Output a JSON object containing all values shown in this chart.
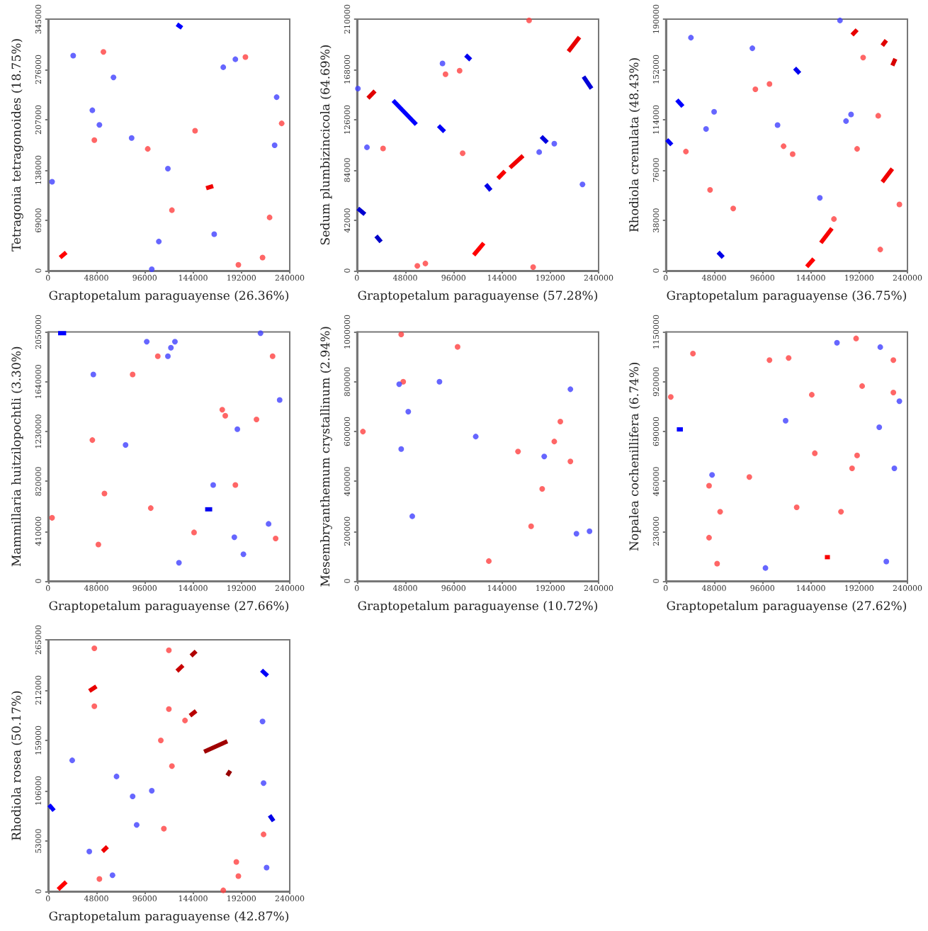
{
  "chart_data": [
    {
      "type": "line",
      "xlabel": "Graptopetalum paraguayense (26.36%)",
      "ylabel": "Tetragonia tetragonoides (18.75%)",
      "xlim": [
        0,
        240000
      ],
      "xticks": [
        0,
        48000,
        96000,
        144000,
        192000,
        240000
      ],
      "ylim": [
        0,
        345000
      ],
      "yticks": [
        0,
        69000,
        138000,
        207000,
        276000,
        345000
      ],
      "marker": "none",
      "series": [
        {
          "color": "#ff0000",
          "x": [
            12000,
            18000
          ],
          "values": [
            18000,
            25000
          ]
        },
        {
          "color": "#f00000",
          "x": [
            157000,
            164000
          ],
          "values": [
            113000,
            116000
          ]
        },
        {
          "color": "#0000ff",
          "x": [
            128000,
            133000
          ],
          "values": [
            338000,
            333000
          ]
        },
        {
          "type": "scatter",
          "marker": "circle",
          "color": "#ff4040",
          "x": [
            196000,
            189000,
            46000,
            99000,
            123000,
            232000,
            55000,
            146000,
            220000,
            213000
          ],
          "values": [
            293000,
            8000,
            179000,
            167000,
            83000,
            202000,
            300000,
            192000,
            73000,
            18000
          ]
        },
        {
          "type": "scatter",
          "marker": "circle",
          "color": "#4040ff",
          "x": [
            51000,
            119000,
            174000,
            25000,
            165000,
            110000,
            103000,
            225000,
            186000,
            65000,
            227000,
            44000,
            83000,
            4000
          ],
          "values": [
            200000,
            140000,
            279000,
            295000,
            50000,
            40000,
            2000,
            172000,
            290000,
            265000,
            238000,
            220000,
            182000,
            122000
          ]
        }
      ]
    },
    {
      "type": "line",
      "xlabel": "Graptopetalum paraguayense (57.28%)",
      "ylabel": "Sedum plumbizincicola (64.69%)",
      "xlim": [
        0,
        240000
      ],
      "xticks": [
        0,
        48000,
        96000,
        144000,
        192000,
        240000
      ],
      "ylim": [
        0,
        210000
      ],
      "yticks": [
        0,
        42000,
        84000,
        126000,
        168000,
        210000
      ],
      "marker": "none",
      "series": [
        {
          "color": "#ff0000",
          "x": [
            116000,
            126000
          ],
          "values": [
            13000,
            23000
          ]
        },
        {
          "color": "#f80000",
          "x": [
            140000,
            147000
          ],
          "values": [
            77000,
            83000
          ]
        },
        {
          "color": "#f00000",
          "x": [
            152000,
            165000
          ],
          "values": [
            86000,
            96000
          ]
        },
        {
          "color": "#e80000",
          "x": [
            210000,
            221000
          ],
          "values": [
            183000,
            195000
          ]
        },
        {
          "color": "#e00000",
          "x": [
            11000,
            18000
          ],
          "values": [
            144000,
            150000
          ]
        },
        {
          "color": "#0000ff",
          "x": [
            36000,
            59000
          ],
          "values": [
            142000,
            122000
          ]
        },
        {
          "color": "#0000f8",
          "x": [
            81000,
            87000
          ],
          "values": [
            121000,
            116000
          ]
        },
        {
          "color": "#0000f0",
          "x": [
            108000,
            113000
          ],
          "values": [
            180000,
            176000
          ]
        },
        {
          "color": "#0000e8",
          "x": [
            128000,
            133000
          ],
          "values": [
            72000,
            67000
          ]
        },
        {
          "color": "#0000e0",
          "x": [
            183000,
            189000
          ],
          "values": [
            112000,
            107000
          ]
        },
        {
          "color": "#0000d8",
          "x": [
            225000,
            233000
          ],
          "values": [
            162000,
            152000
          ]
        },
        {
          "color": "#0000d0",
          "x": [
            1000,
            8000
          ],
          "values": [
            52000,
            47000
          ]
        },
        {
          "color": "#0000c8",
          "x": [
            19000,
            24000
          ],
          "values": [
            29000,
            24000
          ]
        },
        {
          "type": "scatter",
          "marker": "circle",
          "color": "#ff4040",
          "x": [
            68000,
            102000,
            171000,
            60000,
            88000,
            105000,
            26000,
            175000
          ],
          "values": [
            6000,
            167000,
            209000,
            4000,
            164000,
            98000,
            102000,
            3000
          ]
        },
        {
          "type": "scatter",
          "marker": "circle",
          "color": "#4040ff",
          "x": [
            85000,
            181000,
            196000,
            10000,
            1000,
            224000
          ],
          "values": [
            173000,
            99000,
            106000,
            103000,
            152000,
            72000
          ]
        }
      ]
    },
    {
      "type": "line",
      "xlabel": "Graptopetalum paraguayense (36.75%)",
      "ylabel": "Rhodiola crenulata (48.43%)",
      "xlim": [
        0,
        240000
      ],
      "xticks": [
        0,
        48000,
        96000,
        144000,
        192000,
        240000
      ],
      "ylim": [
        0,
        190000
      ],
      "yticks": [
        0,
        38000,
        76000,
        114000,
        152000,
        190000
      ],
      "marker": "none",
      "series": [
        {
          "color": "#ff0000",
          "x": [
            140000,
            147000
          ],
          "values": [
            3000,
            9000
          ]
        },
        {
          "color": "#f80000",
          "x": [
            154000,
            165000
          ],
          "values": [
            21000,
            32000
          ]
        },
        {
          "color": "#f00000",
          "x": [
            215000,
            225000
          ],
          "values": [
            67000,
            77000
          ]
        },
        {
          "color": "#e80000",
          "x": [
            185000,
            190000
          ],
          "values": [
            178000,
            182000
          ]
        },
        {
          "color": "#e00000",
          "x": [
            215000,
            219000
          ],
          "values": [
            170000,
            174000
          ]
        },
        {
          "color": "#d80000",
          "x": [
            225000,
            228000
          ],
          "values": [
            155000,
            160000
          ]
        },
        {
          "color": "#0000ff",
          "x": [
            11000,
            17000
          ],
          "values": [
            129000,
            124000
          ]
        },
        {
          "color": "#0000f8",
          "x": [
            1000,
            6000
          ],
          "values": [
            99000,
            95000
          ]
        },
        {
          "color": "#0000f0",
          "x": [
            128000,
            133000
          ],
          "values": [
            153000,
            149000
          ]
        },
        {
          "color": "#0000e8",
          "x": [
            52000,
            57000
          ],
          "values": [
            14000,
            10000
          ]
        },
        {
          "type": "scatter",
          "marker": "circle",
          "color": "#ff4040",
          "x": [
            167000,
            67000,
            103000,
            196000,
            117000,
            126000,
            20000,
            190000,
            211000,
            232000,
            44000,
            213000,
            89000
          ],
          "values": [
            39000,
            47000,
            141000,
            161000,
            94000,
            88000,
            90000,
            92000,
            117000,
            50000,
            61000,
            16000,
            137000
          ]
        },
        {
          "type": "scatter",
          "marker": "circle",
          "color": "#4040ff",
          "x": [
            48000,
            25000,
            184000,
            179000,
            173000,
            86000,
            153000,
            40000,
            111000
          ],
          "values": [
            120000,
            176000,
            118000,
            113000,
            189000,
            168000,
            55000,
            107000,
            110000
          ]
        }
      ]
    },
    {
      "type": "line",
      "xlabel": "Graptopetalum paraguayense (27.66%)",
      "ylabel": "Mammillaria huitzilopochtli (3.30%)",
      "xlim": [
        0,
        240000
      ],
      "xticks": [
        0,
        48000,
        96000,
        144000,
        192000,
        240000
      ],
      "ylim": [
        0,
        2050000
      ],
      "yticks": [
        0,
        410000,
        820000,
        1230000,
        1640000,
        2050000
      ],
      "marker": "none",
      "series": [
        {
          "color": "#0000ff",
          "x": [
            10000,
            18000
          ],
          "values": [
            2040000,
            2040000
          ]
        },
        {
          "color": "#0000f0",
          "x": [
            156000,
            163000
          ],
          "values": [
            590000,
            590000
          ]
        },
        {
          "type": "scatter",
          "marker": "circle",
          "color": "#ff4040",
          "x": [
            4000,
            44000,
            56000,
            102000,
            109000,
            173000,
            176000,
            207000,
            50000,
            223000,
            186000,
            84000,
            145000,
            226000
          ],
          "values": [
            520000,
            1160000,
            720000,
            600000,
            1850000,
            1410000,
            1360000,
            1330000,
            300000,
            1850000,
            790000,
            1700000,
            400000,
            350000
          ]
        },
        {
          "type": "scatter",
          "marker": "circle",
          "color": "#4040ff",
          "x": [
            211000,
            45000,
            98000,
            119000,
            122000,
            126000,
            77000,
            164000,
            185000,
            188000,
            219000,
            230000,
            194000,
            130000
          ],
          "values": [
            2040000,
            1700000,
            1970000,
            1850000,
            1920000,
            1970000,
            1120000,
            790000,
            360000,
            1250000,
            470000,
            1490000,
            220000,
            150000
          ]
        }
      ]
    },
    {
      "type": "line",
      "xlabel": "Graptopetalum paraguayense (10.72%)",
      "ylabel": "Mesembryanthemum crystallinum (2.94%)",
      "xlim": [
        0,
        240000
      ],
      "xticks": [
        0,
        48000,
        96000,
        144000,
        192000,
        240000
      ],
      "ylim": [
        0,
        1000000
      ],
      "yticks": [
        0,
        200000,
        400000,
        600000,
        800000,
        1000000
      ],
      "series": [
        {
          "type": "scatter",
          "marker": "circle",
          "color": "#ff4040",
          "x": [
            44000,
            6000,
            46000,
            160000,
            184000,
            202000,
            196000,
            212000,
            173000,
            100000,
            131000
          ],
          "values": [
            990000,
            600000,
            800000,
            520000,
            370000,
            640000,
            560000,
            480000,
            220000,
            940000,
            80000
          ]
        },
        {
          "type": "scatter",
          "marker": "circle",
          "color": "#4040ff",
          "x": [
            42000,
            82000,
            44000,
            55000,
            118000,
            212000,
            218000,
            231000,
            51000,
            186000
          ],
          "values": [
            790000,
            800000,
            530000,
            260000,
            580000,
            770000,
            190000,
            200000,
            680000,
            500000
          ]
        }
      ]
    },
    {
      "type": "line",
      "xlabel": "Graptopetalum paraguayense (27.62%)",
      "ylabel": "Nopalea cochenillifera (6.74%)",
      "xlim": [
        0,
        240000
      ],
      "xticks": [
        0,
        48000,
        96000,
        144000,
        192000,
        240000
      ],
      "ylim": [
        0,
        1150000
      ],
      "yticks": [
        0,
        230000,
        460000,
        690000,
        920000,
        1150000
      ],
      "marker": "none",
      "series": [
        {
          "color": "#f80000",
          "x": [
            158000,
            163000
          ],
          "values": [
            110000,
            110000
          ]
        },
        {
          "color": "#0000ff",
          "x": [
            11000,
            17000
          ],
          "values": [
            700000,
            700000
          ]
        },
        {
          "type": "scatter",
          "marker": "circle",
          "color": "#ff4040",
          "x": [
            5000,
            27000,
            43000,
            43000,
            54000,
            83000,
            103000,
            122000,
            145000,
            148000,
            174000,
            185000,
            190000,
            189000,
            195000,
            226000,
            226000,
            51000,
            130000
          ],
          "values": [
            850000,
            1050000,
            440000,
            200000,
            320000,
            480000,
            1020000,
            1030000,
            860000,
            590000,
            320000,
            520000,
            580000,
            1120000,
            900000,
            870000,
            1020000,
            80000,
            340000
          ]
        },
        {
          "type": "scatter",
          "marker": "circle",
          "color": "#4040ff",
          "x": [
            119000,
            170000,
            213000,
            212000,
            227000,
            232000,
            219000,
            46000,
            99000
          ],
          "values": [
            740000,
            1100000,
            1080000,
            710000,
            520000,
            830000,
            90000,
            490000,
            60000
          ]
        }
      ]
    },
    {
      "type": "line",
      "xlabel": "Graptopetalum paraguayense (42.87%)",
      "ylabel": "Rhodiola rosea (50.17%)",
      "xlim": [
        0,
        240000
      ],
      "xticks": [
        0,
        48000,
        96000,
        144000,
        192000,
        240000
      ],
      "ylim": [
        0,
        265000
      ],
      "yticks": [
        0,
        53000,
        106000,
        159000,
        212000,
        265000
      ],
      "marker": "none",
      "series": [
        {
          "color": "#ff0000",
          "x": [
            10000,
            18000
          ],
          "values": [
            2000,
            10000
          ]
        },
        {
          "color": "#f00000",
          "x": [
            54000,
            59000
          ],
          "values": [
            42000,
            47000
          ]
        },
        {
          "color": "#e80000",
          "x": [
            41000,
            48000
          ],
          "values": [
            211000,
            216000
          ]
        },
        {
          "color": "#c80000",
          "x": [
            128000,
            134000
          ],
          "values": [
            232000,
            238000
          ]
        },
        {
          "color": "#b80000",
          "x": [
            141000,
            147000
          ],
          "values": [
            185000,
            190000
          ]
        },
        {
          "color": "#b00000",
          "x": [
            142000,
            147000
          ],
          "values": [
            248000,
            253000
          ]
        },
        {
          "color": "#a00000",
          "x": [
            155000,
            178000
          ],
          "values": [
            147000,
            158000
          ]
        },
        {
          "color": "#980000",
          "x": [
            178000,
            181000
          ],
          "values": [
            122000,
            127000
          ]
        },
        {
          "color": "#0000ff",
          "x": [
            1000,
            6000
          ],
          "values": [
            91000,
            85000
          ]
        },
        {
          "color": "#0000f8",
          "x": [
            212000,
            218000
          ],
          "values": [
            233000,
            227000
          ]
        },
        {
          "color": "#0000e8",
          "x": [
            220000,
            224000
          ],
          "values": [
            80000,
            74000
          ]
        },
        {
          "type": "scatter",
          "marker": "circle",
          "color": "#ff4040",
          "x": [
            46000,
            46000,
            115000,
            174000,
            189000,
            51000,
            112000,
            120000,
            120000,
            136000,
            123000,
            187000,
            214000
          ],
          "values": [
            256000,
            195000,
            66000,
            1000,
            16000,
            13000,
            159000,
            192000,
            254000,
            180000,
            132000,
            31000,
            60000
          ]
        },
        {
          "type": "scatter",
          "marker": "circle",
          "color": "#4040ff",
          "x": [
            213000,
            103000,
            88000,
            64000,
            41000,
            68000,
            24000,
            214000,
            217000,
            84000
          ],
          "values": [
            179000,
            106000,
            70000,
            17000,
            42000,
            121000,
            138000,
            114000,
            25000,
            100000
          ]
        }
      ]
    }
  ]
}
